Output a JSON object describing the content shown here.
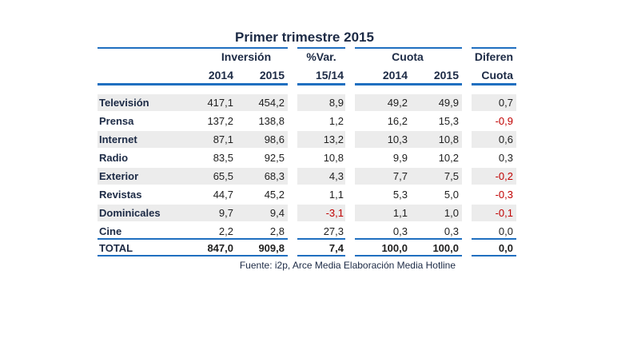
{
  "title": "Primer trimestre 2015",
  "headers": {
    "inversion": "Inversión",
    "var": "%Var.",
    "cuota": "Cuota",
    "diferen": "Diferen",
    "inv_2014": "2014",
    "inv_2015": "2015",
    "var_period": "15/14",
    "cuota_2014": "2014",
    "cuota_2015": "2015",
    "diferen_cuota": "Cuota"
  },
  "rows": [
    {
      "label": "Televisión",
      "inv2014": "417,1",
      "inv2015": "454,2",
      "var": "8,9",
      "c2014": "49,2",
      "c2015": "49,9",
      "dif": "0,7"
    },
    {
      "label": "Prensa",
      "inv2014": "137,2",
      "inv2015": "138,8",
      "var": "1,2",
      "c2014": "16,2",
      "c2015": "15,3",
      "dif": "-0,9"
    },
    {
      "label": "Internet",
      "inv2014": "87,1",
      "inv2015": "98,6",
      "var": "13,2",
      "c2014": "10,3",
      "c2015": "10,8",
      "dif": "0,6"
    },
    {
      "label": "Radio",
      "inv2014": "83,5",
      "inv2015": "92,5",
      "var": "10,8",
      "c2014": "9,9",
      "c2015": "10,2",
      "dif": "0,3"
    },
    {
      "label": "Exterior",
      "inv2014": "65,5",
      "inv2015": "68,3",
      "var": "4,3",
      "c2014": "7,7",
      "c2015": "7,5",
      "dif": "-0,2"
    },
    {
      "label": "Revistas",
      "inv2014": "44,7",
      "inv2015": "45,2",
      "var": "1,1",
      "c2014": "5,3",
      "c2015": "5,0",
      "dif": "-0,3"
    },
    {
      "label": "Dominicales",
      "inv2014": "9,7",
      "inv2015": "9,4",
      "var": "-3,1",
      "c2014": "1,1",
      "c2015": "1,0",
      "dif": "-0,1"
    },
    {
      "label": "Cine",
      "inv2014": "2,2",
      "inv2015": "2,8",
      "var": "27,3",
      "c2014": "0,3",
      "c2015": "0,3",
      "dif": "0,0"
    }
  ],
  "total": {
    "label": "TOTAL",
    "inv2014": "847,0",
    "inv2015": "909,8",
    "var": "7,4",
    "c2014": "100,0",
    "c2015": "100,0",
    "dif": "0,0"
  },
  "footer": "Fuente: i2p, Arce Media Elaboración Media Hotline",
  "colors": {
    "accent_line": "#1f6fc0",
    "negative": "#c00000",
    "band": "#ececec"
  }
}
